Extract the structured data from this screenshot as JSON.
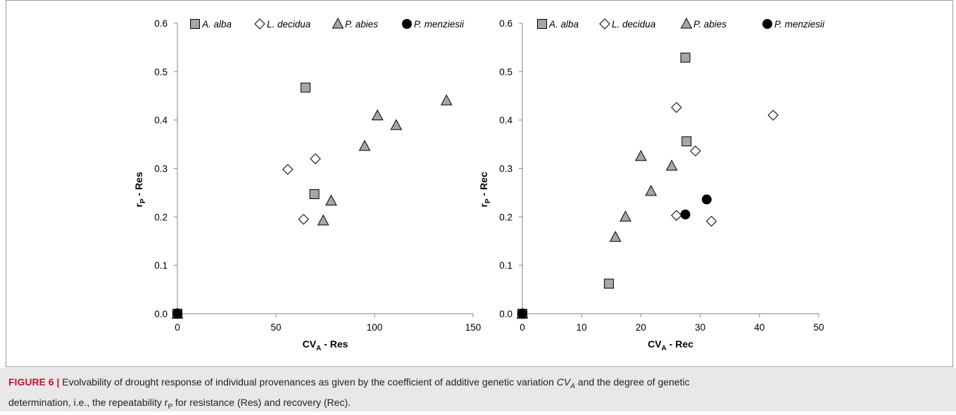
{
  "chart_data": [
    {
      "type": "scatter",
      "xlabel": "CV_A - Res",
      "xlabel_main": "CV",
      "xlabel_sub": "A",
      "xlabel_rest": " - Res",
      "ylabel": "r_P - Res",
      "ylabel_main": "r",
      "ylabel_sub": "P",
      "ylabel_rest": " - Res",
      "xlim": [
        0,
        150
      ],
      "ylim": [
        0,
        0.6
      ],
      "xticks": [
        "0",
        "50",
        "100",
        "150"
      ],
      "yticks": [
        "0.0",
        "0.1",
        "0.2",
        "0.3",
        "0.4",
        "0.5",
        "0.6"
      ],
      "legend_position": "top",
      "series": [
        {
          "name": "A. alba",
          "marker": "square",
          "color": "#a6a6a6",
          "points": [
            [
              0,
              0
            ],
            [
              65,
              0.467
            ],
            [
              69.5,
              0.247
            ]
          ]
        },
        {
          "name": "L. decidua",
          "marker": "diamond",
          "color": "#ffffff",
          "points": [
            [
              0,
              0
            ],
            [
              56,
              0.298
            ],
            [
              70,
              0.32
            ],
            [
              64,
              0.195
            ]
          ]
        },
        {
          "name": "P. abies",
          "marker": "triangle",
          "color": "#a6a6a6",
          "points": [
            [
              0,
              0
            ],
            [
              136.5,
              0.44
            ],
            [
              101.5,
              0.409
            ],
            [
              111,
              0.389
            ],
            [
              95,
              0.346
            ],
            [
              78,
              0.233
            ],
            [
              74,
              0.192
            ]
          ]
        },
        {
          "name": "P. menziesii",
          "marker": "circle",
          "color": "#000000",
          "points": [
            [
              0,
              0
            ]
          ]
        }
      ]
    },
    {
      "type": "scatter",
      "xlabel": "CV_A - Rec",
      "xlabel_main": "CV",
      "xlabel_sub": "A",
      "xlabel_rest": " - Rec",
      "ylabel": "r_P - Rec",
      "ylabel_main": "r",
      "ylabel_sub": "P",
      "ylabel_rest": " - Rec",
      "xlim": [
        0,
        50
      ],
      "ylim": [
        0,
        0.6
      ],
      "xticks": [
        "0",
        "10",
        "20",
        "30",
        "40",
        "50"
      ],
      "yticks": [
        "0.0",
        "0.1",
        "0.2",
        "0.3",
        "0.4",
        "0.5",
        "0.6"
      ],
      "legend_position": "top",
      "series": [
        {
          "name": "A. alba",
          "marker": "square",
          "color": "#a6a6a6",
          "points": [
            [
              0,
              0
            ],
            [
              27.5,
              0.529
            ],
            [
              27.7,
              0.356
            ],
            [
              14.6,
              0.062
            ]
          ]
        },
        {
          "name": "L. decidua",
          "marker": "diamond",
          "color": "#ffffff",
          "points": [
            [
              0,
              0
            ],
            [
              26,
              0.426
            ],
            [
              42.3,
              0.41
            ],
            [
              29.2,
              0.336
            ],
            [
              26,
              0.203
            ],
            [
              31.9,
              0.191
            ]
          ]
        },
        {
          "name": "P. abies",
          "marker": "triangle",
          "color": "#a6a6a6",
          "points": [
            [
              0,
              0
            ],
            [
              20,
              0.325
            ],
            [
              25.2,
              0.305
            ],
            [
              21.7,
              0.253
            ],
            [
              17.4,
              0.2
            ],
            [
              15.7,
              0.158
            ]
          ]
        },
        {
          "name": "P. menziesii",
          "marker": "circle",
          "color": "#000000",
          "points": [
            [
              0,
              0
            ],
            [
              31.1,
              0.236
            ],
            [
              27.5,
              0.205
            ]
          ]
        }
      ]
    }
  ],
  "caption": {
    "label": "FIGURE 6 |",
    "text_part1": " Evolvability of drought response of individual provenances as given by the coefficient of additive genetic variation ",
    "cv_symbol": "CV",
    "cv_sub": "A",
    "text_part2": " and the degree of genetic",
    "text_line2_a": "determination, i.e., the repeatability r",
    "rp_sub": "P",
    "text_line2_b": " for resistance (Res) and recovery (Rec)."
  }
}
